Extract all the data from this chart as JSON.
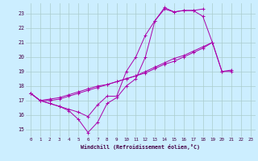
{
  "xlabel": "Windchill (Refroidissement éolien,°C)",
  "bg_color": "#cceeff",
  "grid_color": "#aacccc",
  "line_color": "#aa00aa",
  "xlim": [
    -0.5,
    23.5
  ],
  "ylim": [
    14.5,
    23.7
  ],
  "yticks": [
    15,
    16,
    17,
    18,
    19,
    20,
    21,
    22,
    23
  ],
  "xticks": [
    0,
    1,
    2,
    3,
    4,
    5,
    6,
    7,
    8,
    9,
    10,
    11,
    12,
    13,
    14,
    15,
    16,
    17,
    18,
    19,
    20,
    21,
    22,
    23
  ],
  "series": [
    {
      "x": [
        0,
        1,
        2,
        3,
        4,
        5,
        6,
        7,
        8,
        9,
        10,
        11,
        12,
        13,
        14,
        15,
        16,
        17,
        18
      ],
      "y": [
        17.5,
        17.0,
        16.8,
        16.6,
        16.3,
        15.7,
        14.8,
        15.5,
        16.8,
        17.2,
        18.0,
        18.5,
        20.0,
        22.5,
        23.4,
        23.1,
        23.2,
        23.2,
        23.3
      ]
    },
    {
      "x": [
        0,
        1,
        2,
        3,
        4,
        5,
        6,
        7,
        8,
        9,
        10,
        11,
        12,
        13,
        14,
        15,
        16,
        17,
        18,
        19,
        20,
        21,
        22,
        23
      ],
      "y": [
        17.5,
        17.0,
        16.8,
        16.6,
        16.4,
        16.2,
        15.9,
        16.7,
        17.3,
        17.3,
        19.0,
        20.0,
        21.5,
        22.5,
        23.3,
        23.1,
        23.2,
        23.2,
        22.8,
        21.0,
        19.0,
        19.0,
        null,
        null
      ]
    },
    {
      "x": [
        0,
        1,
        2,
        3,
        4,
        5,
        6,
        7,
        8,
        9,
        10,
        11,
        12,
        13,
        14,
        15,
        16,
        17,
        18,
        19,
        20,
        21,
        22,
        23
      ],
      "y": [
        17.5,
        17.0,
        17.0,
        17.1,
        17.3,
        17.5,
        17.7,
        17.9,
        18.1,
        18.3,
        18.5,
        18.7,
        19.0,
        19.3,
        19.6,
        19.9,
        20.1,
        20.4,
        20.7,
        21.0,
        null,
        null,
        null,
        null
      ]
    },
    {
      "x": [
        0,
        1,
        2,
        3,
        4,
        5,
        6,
        7,
        8,
        9,
        10,
        11,
        12,
        13,
        14,
        15,
        16,
        17,
        18,
        19,
        20,
        21,
        22,
        23
      ],
      "y": [
        17.5,
        17.0,
        17.1,
        17.2,
        17.4,
        17.6,
        17.8,
        18.0,
        18.1,
        18.3,
        18.5,
        18.7,
        18.9,
        19.2,
        19.5,
        19.7,
        20.0,
        20.3,
        20.6,
        21.0,
        19.0,
        19.1,
        null,
        null
      ]
    }
  ]
}
